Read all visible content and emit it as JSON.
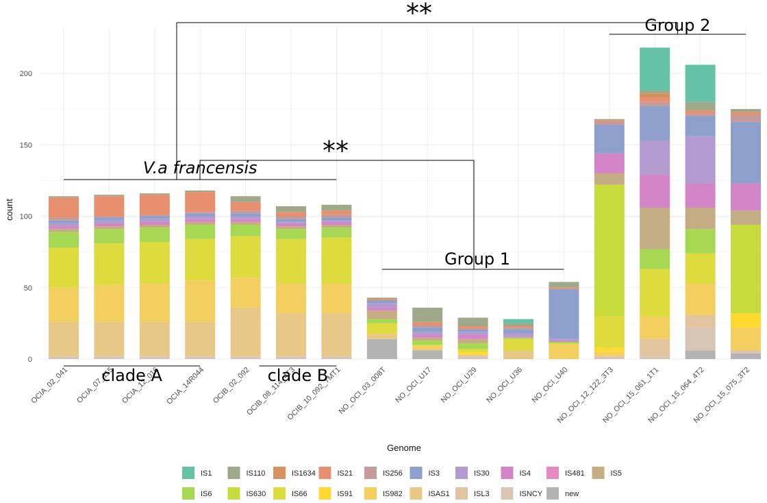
{
  "chart_data": {
    "type": "bar",
    "stacked": true,
    "xlabel": "Genome",
    "ylabel": "count",
    "ylim": [
      0,
      225
    ],
    "yticks": [
      0,
      50,
      100,
      150,
      200
    ],
    "grid": true,
    "legend_position": "bottom",
    "categories": [
      "OCIA_02_041",
      "OCIA_07_115",
      "OCIA_12_016",
      "OCIA_14R044",
      "OCIB_02_092",
      "OCIB_08_114_4T3",
      "OCIB_10_092_7MT1",
      "NO_OCI_03_008T",
      "NO_OCI_U17",
      "NO_OCI_U29",
      "NO_OCI_U36",
      "NO_OCI_U40",
      "NO_OCI_12_122_3T3",
      "NO_OCI_15_061_1T1",
      "NO_OCI_15_064_4T2",
      "NO_OCI_15_075_3T2"
    ],
    "series": [
      {
        "name": "new",
        "color": "#b3b3b3",
        "values": [
          0,
          0,
          0,
          0,
          0,
          0,
          0,
          14,
          6,
          0,
          0,
          0,
          0,
          0,
          6,
          4
        ]
      },
      {
        "name": "ISNCY",
        "color": "#d7c6b5",
        "values": [
          2,
          2,
          2,
          2,
          2,
          2,
          2,
          0,
          0,
          2,
          0,
          0,
          2,
          2,
          16,
          2
        ]
      },
      {
        "name": "ISL3",
        "color": "#e2c59e",
        "values": [
          0,
          0,
          0,
          0,
          0,
          0,
          0,
          0,
          0,
          0,
          0,
          0,
          0,
          12,
          9,
          0
        ]
      },
      {
        "name": "ISAS1",
        "color": "#e8c888",
        "values": [
          24,
          24,
          24,
          24,
          34,
          30,
          30,
          3,
          1,
          1,
          6,
          0,
          0,
          0,
          0,
          0
        ]
      },
      {
        "name": "IS982",
        "color": "#f2cf5e",
        "values": [
          24,
          26,
          27,
          29,
          21,
          21,
          21,
          1,
          2,
          0,
          0,
          10,
          3,
          16,
          22,
          16
        ]
      },
      {
        "name": "IS91",
        "color": "#ffd92f",
        "values": [
          0,
          0,
          0,
          0,
          0,
          0,
          0,
          0,
          0,
          2,
          0,
          0,
          3,
          0,
          0,
          10
        ]
      },
      {
        "name": "IS66",
        "color": "#dedb3f",
        "values": [
          28,
          29,
          29,
          29,
          29,
          31,
          32,
          7,
          1,
          2,
          8,
          1,
          22,
          33,
          21,
          0
        ]
      },
      {
        "name": "IS630",
        "color": "#c8dc3e",
        "values": [
          0,
          0,
          0,
          0,
          0,
          0,
          0,
          0,
          0,
          0,
          0,
          0,
          92,
          0,
          0,
          62
        ]
      },
      {
        "name": "IS6",
        "color": "#a6d854",
        "values": [
          11,
          10,
          10,
          10,
          8,
          7,
          7,
          3,
          3,
          4,
          1,
          1,
          0,
          14,
          17,
          0
        ]
      },
      {
        "name": "IS5",
        "color": "#c4ad82",
        "values": [
          2,
          2,
          2,
          2,
          2,
          2,
          2,
          6,
          2,
          3,
          0,
          0,
          8,
          29,
          15,
          10
        ]
      },
      {
        "name": "IS481",
        "color": "#e78ac3",
        "values": [
          0,
          0,
          0,
          0,
          0,
          0,
          0,
          0,
          0,
          0,
          0,
          0,
          0,
          0,
          0,
          0
        ]
      },
      {
        "name": "IS4",
        "color": "#d485c8",
        "values": [
          2,
          2,
          2,
          2,
          2,
          2,
          2,
          2,
          2,
          3,
          1,
          1,
          14,
          23,
          17,
          19
        ]
      },
      {
        "name": "IS30",
        "color": "#b19bcf",
        "values": [
          2,
          2,
          2,
          2,
          2,
          1,
          1,
          3,
          2,
          2,
          2,
          1,
          0,
          24,
          33,
          0
        ]
      },
      {
        "name": "IS3",
        "color": "#8da0cb",
        "values": [
          2,
          2,
          2,
          2,
          2,
          2,
          2,
          2,
          3,
          2,
          3,
          35,
          20,
          24,
          14,
          43
        ]
      },
      {
        "name": "IS256",
        "color": "#c49a9a",
        "values": [
          2,
          1,
          1,
          1,
          2,
          2,
          2,
          0,
          2,
          0,
          1,
          0,
          2,
          3,
          2,
          5
        ]
      },
      {
        "name": "IS21",
        "color": "#e78f6e",
        "values": [
          14,
          14,
          14,
          14,
          6,
          3,
          3,
          1,
          2,
          2,
          1,
          1,
          1,
          3,
          2,
          2
        ]
      },
      {
        "name": "IS1634",
        "color": "#d99060",
        "values": [
          0,
          0,
          0,
          0,
          0,
          0,
          0,
          0,
          0,
          0,
          0,
          0,
          0,
          3,
          0,
          0
        ]
      },
      {
        "name": "IS110",
        "color": "#9fa98a",
        "values": [
          1,
          1,
          1,
          1,
          4,
          4,
          4,
          1,
          10,
          6,
          2,
          4,
          1,
          2,
          6,
          2
        ]
      },
      {
        "name": "IS1",
        "color": "#66c2a5",
        "values": [
          0,
          0,
          0,
          0,
          0,
          0,
          0,
          0,
          0,
          0,
          3,
          0,
          0,
          30,
          26,
          0
        ]
      }
    ],
    "legend_order": [
      "IS1",
      "IS110",
      "IS1634",
      "IS21",
      "IS256",
      "IS3",
      "IS30",
      "IS4",
      "IS481",
      "IS5",
      "IS6",
      "IS630",
      "IS66",
      "IS91",
      "IS982",
      "ISAS1",
      "ISL3",
      "ISNCY",
      "new"
    ],
    "annotations": {
      "sig_groups": "**",
      "sig_francensis": "**",
      "group1": "Group 1",
      "group2": "Group 2",
      "francensis": "V.a francensis",
      "cladeA": "clade A",
      "cladeB": "clade B"
    }
  }
}
